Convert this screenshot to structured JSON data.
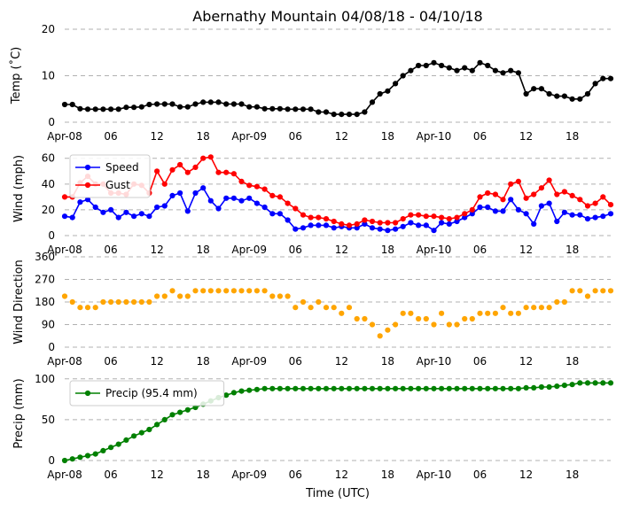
{
  "title": "Abernathy Mountain 04/08/18 - 04/10/18",
  "xlabel": "Time (UTC)",
  "x_ticks": [
    {
      "hour": 0,
      "label": "Apr-08"
    },
    {
      "hour": 6,
      "label": "06"
    },
    {
      "hour": 12,
      "label": "12"
    },
    {
      "hour": 18,
      "label": "18"
    },
    {
      "hour": 24,
      "label": "Apr-09"
    },
    {
      "hour": 30,
      "label": "06"
    },
    {
      "hour": 36,
      "label": "12"
    },
    {
      "hour": 42,
      "label": "18"
    },
    {
      "hour": 48,
      "label": "Apr-10"
    },
    {
      "hour": 54,
      "label": "06"
    },
    {
      "hour": 60,
      "label": "12"
    },
    {
      "hour": 66,
      "label": "18"
    }
  ],
  "chart_data": [
    {
      "type": "line",
      "ylabel": "Temp ($^\\circ$C)",
      "ylabel_display": "Temp (˚C)",
      "ylim": [
        0,
        20
      ],
      "yticks": [
        0,
        10,
        20
      ],
      "x": "hours 0-71",
      "series": [
        {
          "name": "Temp",
          "color": "#000000",
          "values": [
            3.8,
            3.8,
            2.9,
            2.8,
            2.8,
            2.8,
            2.8,
            2.8,
            3.2,
            3.2,
            3.3,
            3.8,
            3.9,
            3.9,
            3.9,
            3.3,
            3.3,
            3.9,
            4.3,
            4.3,
            4.3,
            3.9,
            3.9,
            3.9,
            3.3,
            3.3,
            2.9,
            2.9,
            2.9,
            2.8,
            2.8,
            2.8,
            2.8,
            2.2,
            2.2,
            1.7,
            1.7,
            1.7,
            1.7,
            2.2,
            4.3,
            6.1,
            6.7,
            8.3,
            10.0,
            11.1,
            12.2,
            12.2,
            12.8,
            12.2,
            11.7,
            11.1,
            11.7,
            11.1,
            12.8,
            12.2,
            11.1,
            10.6,
            11.1,
            10.6,
            6.1,
            7.2,
            7.2,
            6.1,
            5.6,
            5.6,
            5.0,
            5.0,
            6.1,
            8.3,
            9.4,
            9.4
          ]
        }
      ]
    },
    {
      "type": "line",
      "ylabel": "Wind (mph)",
      "ylim": [
        0,
        66
      ],
      "yticks": [
        0,
        20,
        40,
        60
      ],
      "legend": "top-left",
      "series": [
        {
          "name": "Speed",
          "color": "#0000ff",
          "values": [
            15,
            14,
            26,
            28,
            22,
            18,
            20,
            14,
            18,
            15,
            17,
            15,
            22,
            23,
            31,
            33,
            19,
            33,
            37,
            27,
            21,
            29,
            29,
            27,
            29,
            25,
            22,
            17,
            17,
            12,
            5,
            6,
            8,
            8,
            8,
            6,
            7,
            6,
            6,
            9,
            6,
            5,
            4,
            5,
            7,
            10,
            8,
            8,
            4,
            10,
            9,
            11,
            14,
            17,
            22,
            22,
            19,
            19,
            28,
            20,
            17,
            9,
            23,
            25,
            11,
            18,
            16,
            16,
            13,
            14,
            15,
            17
          ]
        },
        {
          "name": "Gust",
          "color": "#ff0000",
          "values": [
            30,
            30,
            41,
            46,
            40,
            40,
            33,
            33,
            32,
            40,
            39,
            33,
            50,
            40,
            51,
            55,
            49,
            53,
            60,
            61,
            49,
            49,
            48,
            42,
            39,
            38,
            36,
            31,
            30,
            25,
            21,
            16,
            14,
            14,
            13,
            11,
            9,
            8,
            9,
            12,
            11,
            10,
            10,
            10,
            13,
            16,
            16,
            15,
            15,
            14,
            13,
            14,
            17,
            20,
            30,
            33,
            32,
            28,
            40,
            42,
            29,
            32,
            37,
            43,
            32,
            34,
            31,
            28,
            23,
            25,
            30,
            24
          ]
        }
      ]
    },
    {
      "type": "scatter",
      "ylabel": "Wind Direction",
      "ylim": [
        0,
        360
      ],
      "yticks": [
        0,
        90,
        180,
        270,
        360
      ],
      "series": [
        {
          "name": "Direction",
          "color": "#ffa500",
          "values": [
            203,
            180,
            158,
            158,
            158,
            180,
            180,
            180,
            180,
            180,
            180,
            180,
            203,
            203,
            225,
            203,
            203,
            225,
            225,
            225,
            225,
            225,
            225,
            225,
            225,
            225,
            225,
            203,
            203,
            203,
            158,
            180,
            158,
            180,
            158,
            158,
            135,
            158,
            113,
            113,
            90,
            45,
            68,
            90,
            135,
            135,
            113,
            113,
            90,
            135,
            90,
            90,
            113,
            113,
            135,
            135,
            135,
            158,
            135,
            135,
            158,
            158,
            158,
            158,
            180,
            180,
            225,
            225,
            203,
            225,
            225,
            225
          ]
        }
      ]
    },
    {
      "type": "line",
      "ylabel": "Precip (mm)",
      "ylim": [
        0,
        103
      ],
      "yticks": [
        0,
        50,
        100
      ],
      "legend": "top-left",
      "series": [
        {
          "name": "Precip (95.4 mm)",
          "color": "#008000",
          "values": [
            0,
            2,
            4,
            6,
            8,
            12,
            16,
            20,
            25,
            30,
            34,
            38,
            44,
            50,
            56,
            59,
            62,
            65,
            69,
            73,
            77,
            80,
            83,
            85,
            86,
            87,
            88,
            88,
            88,
            88,
            88,
            88,
            88,
            88,
            88,
            88,
            88,
            88,
            88,
            88,
            88,
            88,
            88,
            88,
            88,
            88,
            88,
            88,
            88,
            88,
            88,
            88,
            88,
            88,
            88,
            88,
            88,
            88,
            88,
            88,
            89,
            89,
            90,
            90,
            91,
            92,
            93,
            95,
            95,
            95,
            95,
            95
          ]
        }
      ]
    }
  ]
}
